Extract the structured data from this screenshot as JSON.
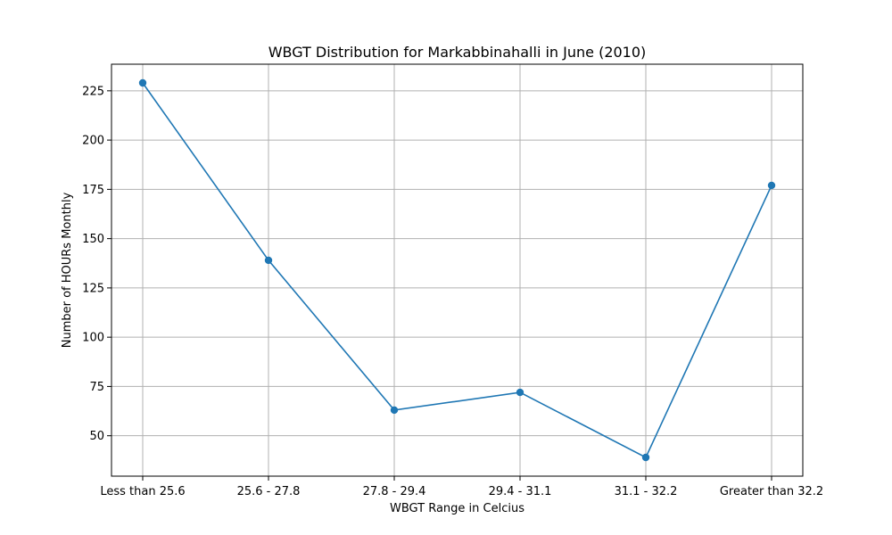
{
  "chart_data": {
    "type": "line",
    "title": "WBGT Distribution for Markabbinahalli in June (2010)",
    "xlabel": "WBGT Range in Celcius",
    "ylabel": "Number of HOURs Monthly",
    "categories": [
      "Less than 25.6",
      "25.6 - 27.8",
      "27.8 - 29.4",
      "29.4 - 31.1",
      "31.1 - 32.2",
      "Greater than 32.2"
    ],
    "series": [
      {
        "values": [
          229,
          139,
          63,
          72,
          39,
          177
        ]
      }
    ],
    "yticks": [
      50,
      75,
      100,
      125,
      150,
      175,
      200,
      225
    ],
    "ylim": [
      29.5,
      238.5
    ],
    "grid": true,
    "color": "#1f77b4"
  }
}
